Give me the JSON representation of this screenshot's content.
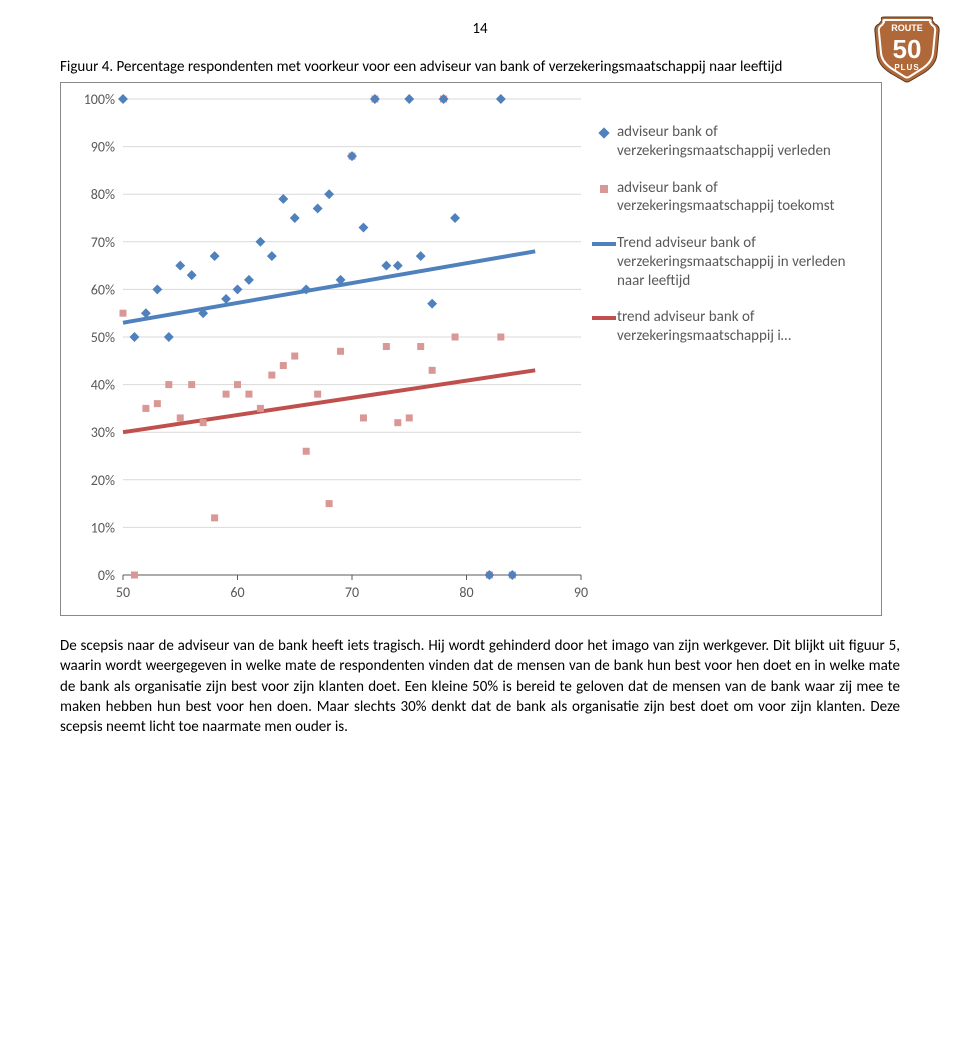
{
  "page_number": "14",
  "logo": {
    "top_text": "ROUTE",
    "big_text": "50",
    "bottom_text": "PLUS",
    "border_color": "#b06838",
    "border_inner": "#ffffff",
    "fill": "#b06838",
    "text_color": "#ffffff"
  },
  "figure_caption": "Figuur 4. Percentage respondenten met voorkeur voor een adviseur van bank of verzekeringsmaatschappij naar leeftijd",
  "chart": {
    "type": "scatter-with-trend",
    "background_color": "#ffffff",
    "plot_border_color": "#888888",
    "grid_color": "#d9d9d9",
    "axis_label_color": "#595959",
    "axis_label_fontsize": 14,
    "xlim": [
      50,
      90
    ],
    "ylim": [
      0,
      100
    ],
    "xticks": [
      50,
      60,
      70,
      80,
      90
    ],
    "yticks": [
      0,
      10,
      20,
      30,
      40,
      50,
      60,
      70,
      80,
      90,
      100
    ],
    "ytick_labels": [
      "0%",
      "10%",
      "20%",
      "30%",
      "40%",
      "50%",
      "60%",
      "70%",
      "80%",
      "90%",
      "100%"
    ],
    "series_past": {
      "label": "adviseur bank of verzekeringsmaatschappij verleden",
      "marker": "diamond",
      "marker_size": 7,
      "color": "#4f81bd",
      "points": [
        [
          50,
          100
        ],
        [
          51,
          50
        ],
        [
          52,
          55
        ],
        [
          53,
          60
        ],
        [
          54,
          50
        ],
        [
          55,
          65
        ],
        [
          56,
          63
        ],
        [
          57,
          55
        ],
        [
          58,
          67
        ],
        [
          59,
          58
        ],
        [
          60,
          60
        ],
        [
          61,
          62
        ],
        [
          62,
          70
        ],
        [
          63,
          67
        ],
        [
          64,
          79
        ],
        [
          65,
          75
        ],
        [
          66,
          60
        ],
        [
          67,
          77
        ],
        [
          68,
          80
        ],
        [
          69,
          62
        ],
        [
          70,
          88
        ],
        [
          71,
          73
        ],
        [
          72,
          100
        ],
        [
          73,
          65
        ],
        [
          74,
          65
        ],
        [
          75,
          100
        ],
        [
          76,
          67
        ],
        [
          77,
          57
        ],
        [
          78,
          100
        ],
        [
          79,
          75
        ],
        [
          82,
          0
        ],
        [
          83,
          100
        ],
        [
          84,
          0
        ]
      ]
    },
    "series_future": {
      "label": "adviseur bank of verzekeringsmaatschappij toekomst",
      "marker": "square",
      "marker_size": 7,
      "color": "#d99795",
      "points": [
        [
          50,
          55
        ],
        [
          51,
          0
        ],
        [
          52,
          35
        ],
        [
          53,
          36
        ],
        [
          54,
          40
        ],
        [
          55,
          33
        ],
        [
          56,
          40
        ],
        [
          57,
          32
        ],
        [
          58,
          12
        ],
        [
          59,
          38
        ],
        [
          60,
          40
        ],
        [
          61,
          38
        ],
        [
          62,
          35
        ],
        [
          63,
          42
        ],
        [
          64,
          44
        ],
        [
          65,
          46
        ],
        [
          66,
          26
        ],
        [
          67,
          38
        ],
        [
          68,
          15
        ],
        [
          69,
          47
        ],
        [
          70,
          88
        ],
        [
          71,
          33
        ],
        [
          72,
          100
        ],
        [
          73,
          48
        ],
        [
          74,
          32
        ],
        [
          75,
          33
        ],
        [
          76,
          48
        ],
        [
          77,
          43
        ],
        [
          78,
          100
        ],
        [
          79,
          50
        ],
        [
          82,
          0
        ],
        [
          83,
          50
        ],
        [
          84,
          0
        ]
      ]
    },
    "trend_past": {
      "label": "Trend adviseur bank of verzekeringsmaatschappij in verleden naar leeftijd",
      "color": "#4f81bd",
      "width": 4,
      "start": [
        50,
        53
      ],
      "end": [
        86,
        68
      ]
    },
    "trend_future": {
      "label": "trend adviseur bank of verzekeringsmaatschappij i…",
      "color": "#c0504d",
      "width": 4,
      "start": [
        50,
        30
      ],
      "end": [
        86,
        43
      ]
    }
  },
  "body_text": "De scepsis naar de adviseur van de bank heeft iets tragisch. Hij wordt gehinderd door het imago van zijn werkgever. Dit blijkt uit figuur 5, waarin wordt weergegeven in welke mate de respondenten vinden dat de mensen van de bank hun best voor hen doet en in welke mate de bank als organisatie zijn best voor zijn klanten doet. Een kleine 50% is bereid te geloven dat de mensen van de bank waar zij mee te maken hebben hun best voor hen doen. Maar slechts 30% denkt dat de bank als organisatie zijn best doet om voor zijn klanten. Deze scepsis neemt licht toe naarmate men ouder is."
}
